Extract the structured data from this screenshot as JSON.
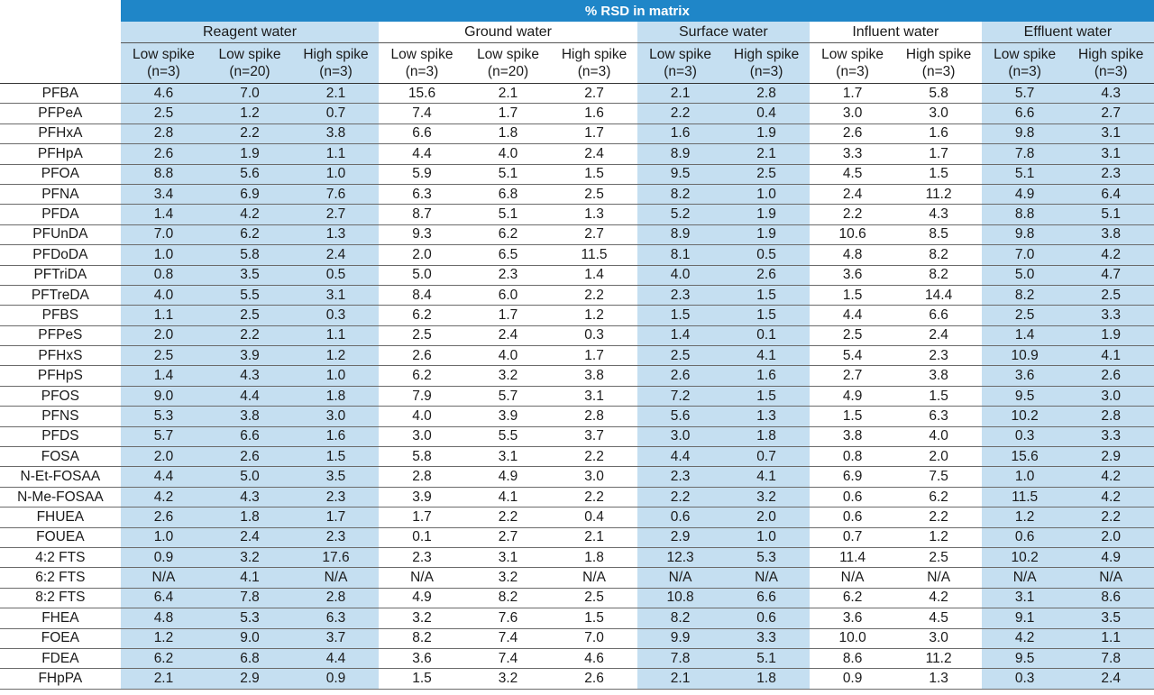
{
  "title": "% RSD in matrix",
  "groups": [
    {
      "name": "Reagent water",
      "sub": [
        [
          "Low spike",
          "(n=3)"
        ],
        [
          "Low spike",
          "(n=20)"
        ],
        [
          "High spike",
          "(n=3)"
        ]
      ]
    },
    {
      "name": "Ground water",
      "sub": [
        [
          "Low spike",
          "(n=3)"
        ],
        [
          "Low spike",
          "(n=20)"
        ],
        [
          "High spike",
          "(n=3)"
        ]
      ]
    },
    {
      "name": "Surface water",
      "sub": [
        [
          "Low spike",
          "(n=3)"
        ],
        [
          "High spike",
          "(n=3)"
        ]
      ]
    },
    {
      "name": "Influent water",
      "sub": [
        [
          "Low spike",
          "(n=3)"
        ],
        [
          "High spike",
          "(n=3)"
        ]
      ]
    },
    {
      "name": "Effluent water",
      "sub": [
        [
          "Low spike",
          "(n=3)"
        ],
        [
          "High spike",
          "(n=3)"
        ]
      ]
    }
  ],
  "colors": {
    "title_bg": "#1f86c8",
    "band": "#c5dff1"
  },
  "rows": [
    {
      "name": "PFBA",
      "v": [
        "4.6",
        "7.0",
        "2.1",
        "15.6",
        "2.1",
        "2.7",
        "2.1",
        "2.8",
        "1.7",
        "5.8",
        "5.7",
        "4.3"
      ]
    },
    {
      "name": "PFPeA",
      "v": [
        "2.5",
        "1.2",
        "0.7",
        "7.4",
        "1.7",
        "1.6",
        "2.2",
        "0.4",
        "3.0",
        "3.0",
        "6.6",
        "2.7"
      ]
    },
    {
      "name": "PFHxA",
      "v": [
        "2.8",
        "2.2",
        "3.8",
        "6.6",
        "1.8",
        "1.7",
        "1.6",
        "1.9",
        "2.6",
        "1.6",
        "9.8",
        "3.1"
      ]
    },
    {
      "name": "PFHpA",
      "v": [
        "2.6",
        "1.9",
        "1.1",
        "4.4",
        "4.0",
        "2.4",
        "8.9",
        "2.1",
        "3.3",
        "1.7",
        "7.8",
        "3.1"
      ]
    },
    {
      "name": "PFOA",
      "v": [
        "8.8",
        "5.6",
        "1.0",
        "5.9",
        "5.1",
        "1.5",
        "9.5",
        "2.5",
        "4.5",
        "1.5",
        "5.1",
        "2.3"
      ]
    },
    {
      "name": "PFNA",
      "v": [
        "3.4",
        "6.9",
        "7.6",
        "6.3",
        "6.8",
        "2.5",
        "8.2",
        "1.0",
        "2.4",
        "11.2",
        "4.9",
        "6.4"
      ]
    },
    {
      "name": "PFDA",
      "v": [
        "1.4",
        "4.2",
        "2.7",
        "8.7",
        "5.1",
        "1.3",
        "5.2",
        "1.9",
        "2.2",
        "4.3",
        "8.8",
        "5.1"
      ]
    },
    {
      "name": "PFUnDA",
      "v": [
        "7.0",
        "6.2",
        "1.3",
        "9.3",
        "6.2",
        "2.7",
        "8.9",
        "1.9",
        "10.6",
        "8.5",
        "9.8",
        "3.8"
      ]
    },
    {
      "name": "PFDoDA",
      "v": [
        "1.0",
        "5.8",
        "2.4",
        "2.0",
        "6.5",
        "11.5",
        "8.1",
        "0.5",
        "4.8",
        "8.2",
        "7.0",
        "4.2"
      ]
    },
    {
      "name": "PFTriDA",
      "v": [
        "0.8",
        "3.5",
        "0.5",
        "5.0",
        "2.3",
        "1.4",
        "4.0",
        "2.6",
        "3.6",
        "8.2",
        "5.0",
        "4.7"
      ]
    },
    {
      "name": "PFTreDA",
      "v": [
        "4.0",
        "5.5",
        "3.1",
        "8.4",
        "6.0",
        "2.2",
        "2.3",
        "1.5",
        "1.5",
        "14.4",
        "8.2",
        "2.5"
      ]
    },
    {
      "name": "PFBS",
      "v": [
        "1.1",
        "2.5",
        "0.3",
        "6.2",
        "1.7",
        "1.2",
        "1.5",
        "1.5",
        "4.4",
        "6.6",
        "2.5",
        "3.3"
      ]
    },
    {
      "name": "PFPeS",
      "v": [
        "2.0",
        "2.2",
        "1.1",
        "2.5",
        "2.4",
        "0.3",
        "1.4",
        "0.1",
        "2.5",
        "2.4",
        "1.4",
        "1.9"
      ]
    },
    {
      "name": "PFHxS",
      "v": [
        "2.5",
        "3.9",
        "1.2",
        "2.6",
        "4.0",
        "1.7",
        "2.5",
        "4.1",
        "5.4",
        "2.3",
        "10.9",
        "4.1"
      ]
    },
    {
      "name": "PFHpS",
      "v": [
        "1.4",
        "4.3",
        "1.0",
        "6.2",
        "3.2",
        "3.8",
        "2.6",
        "1.6",
        "2.7",
        "3.8",
        "3.6",
        "2.6"
      ]
    },
    {
      "name": "PFOS",
      "v": [
        "9.0",
        "4.4",
        "1.8",
        "7.9",
        "5.7",
        "3.1",
        "7.2",
        "1.5",
        "4.9",
        "1.5",
        "9.5",
        "3.0"
      ]
    },
    {
      "name": "PFNS",
      "v": [
        "5.3",
        "3.8",
        "3.0",
        "4.0",
        "3.9",
        "2.8",
        "5.6",
        "1.3",
        "1.5",
        "6.3",
        "10.2",
        "2.8"
      ]
    },
    {
      "name": "PFDS",
      "v": [
        "5.7",
        "6.6",
        "1.6",
        "3.0",
        "5.5",
        "3.7",
        "3.0",
        "1.8",
        "3.8",
        "4.0",
        "0.3",
        "3.3"
      ]
    },
    {
      "name": "FOSA",
      "v": [
        "2.0",
        "2.6",
        "1.5",
        "5.8",
        "3.1",
        "2.2",
        "4.4",
        "0.7",
        "0.8",
        "2.0",
        "15.6",
        "2.9"
      ]
    },
    {
      "name": "N-Et-FOSAA",
      "v": [
        "4.4",
        "5.0",
        "3.5",
        "2.8",
        "4.9",
        "3.0",
        "2.3",
        "4.1",
        "6.9",
        "7.5",
        "1.0",
        "4.2"
      ]
    },
    {
      "name": "N-Me-FOSAA",
      "v": [
        "4.2",
        "4.3",
        "2.3",
        "3.9",
        "4.1",
        "2.2",
        "2.2",
        "3.2",
        "0.6",
        "6.2",
        "11.5",
        "4.2"
      ]
    },
    {
      "name": "FHUEA",
      "v": [
        "2.6",
        "1.8",
        "1.7",
        "1.7",
        "2.2",
        "0.4",
        "0.6",
        "2.0",
        "0.6",
        "2.2",
        "1.2",
        "2.2"
      ]
    },
    {
      "name": "FOUEA",
      "v": [
        "1.0",
        "2.4",
        "2.3",
        "0.1",
        "2.7",
        "2.1",
        "2.9",
        "1.0",
        "0.7",
        "1.2",
        "0.6",
        "2.0"
      ]
    },
    {
      "name": "4:2 FTS",
      "v": [
        "0.9",
        "3.2",
        "17.6",
        "2.3",
        "3.1",
        "1.8",
        "12.3",
        "5.3",
        "11.4",
        "2.5",
        "10.2",
        "4.9"
      ]
    },
    {
      "name": "6:2 FTS",
      "v": [
        "N/A",
        "4.1",
        "N/A",
        "N/A",
        "3.2",
        "N/A",
        "N/A",
        "N/A",
        "N/A",
        "N/A",
        "N/A",
        "N/A"
      ]
    },
    {
      "name": "8:2 FTS",
      "v": [
        "6.4",
        "7.8",
        "2.8",
        "4.9",
        "8.2",
        "2.5",
        "10.8",
        "6.6",
        "6.2",
        "4.2",
        "3.1",
        "8.6"
      ]
    },
    {
      "name": "FHEA",
      "v": [
        "4.8",
        "5.3",
        "6.3",
        "3.2",
        "7.6",
        "1.5",
        "8.2",
        "0.6",
        "3.6",
        "4.5",
        "9.1",
        "3.5"
      ]
    },
    {
      "name": "FOEA",
      "v": [
        "1.2",
        "9.0",
        "3.7",
        "8.2",
        "7.4",
        "7.0",
        "9.9",
        "3.3",
        "10.0",
        "3.0",
        "4.2",
        "1.1"
      ]
    },
    {
      "name": "FDEA",
      "v": [
        "6.2",
        "6.8",
        "4.4",
        "3.6",
        "7.4",
        "4.6",
        "7.8",
        "5.1",
        "8.6",
        "11.2",
        "9.5",
        "7.8"
      ]
    },
    {
      "name": "FHpPA",
      "v": [
        "2.1",
        "2.9",
        "0.9",
        "1.5",
        "3.2",
        "2.6",
        "2.1",
        "1.8",
        "0.9",
        "1.3",
        "0.3",
        "2.4"
      ]
    }
  ]
}
